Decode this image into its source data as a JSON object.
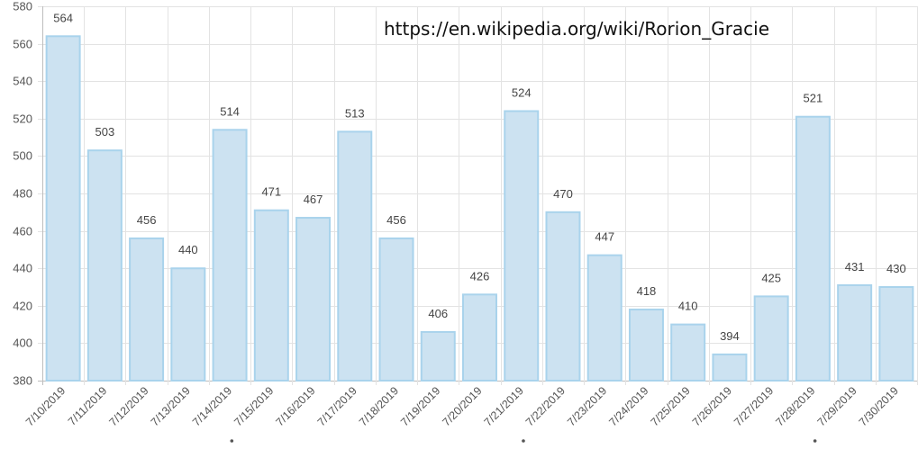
{
  "annotation": {
    "url": "https://en.wikipedia.org/wiki/Rorion_Gracie"
  },
  "colors": {
    "bar_fill": "#cce2f1",
    "bar_stroke": "#a9d3ec",
    "grid": "#e3e3e3",
    "axis": "#bdbdbd",
    "text": "#555555",
    "value_text": "#444444"
  },
  "chart_data": {
    "type": "bar",
    "title": "",
    "xlabel": "",
    "ylabel": "",
    "ylim": [
      380,
      580
    ],
    "yticks": [
      380,
      400,
      420,
      440,
      460,
      480,
      500,
      520,
      540,
      560,
      580
    ],
    "grid": true,
    "categories": [
      "7/10/2019",
      "7/11/2019",
      "7/12/2019",
      "7/13/2019",
      "7/14/2019",
      "7/15/2019",
      "7/16/2019",
      "7/17/2019",
      "7/18/2019",
      "7/19/2019",
      "7/20/2019",
      "7/21/2019",
      "7/22/2019",
      "7/23/2019",
      "7/24/2019",
      "7/25/2019",
      "7/26/2019",
      "7/27/2019",
      "7/28/2019",
      "7/29/2019",
      "7/30/2019"
    ],
    "values": [
      564,
      503,
      456,
      440,
      514,
      471,
      467,
      513,
      456,
      406,
      426,
      524,
      470,
      447,
      418,
      410,
      394,
      425,
      521,
      431,
      430
    ],
    "marked_categories": [
      "7/15/2019",
      "7/22/2019",
      "7/29/2019"
    ]
  }
}
